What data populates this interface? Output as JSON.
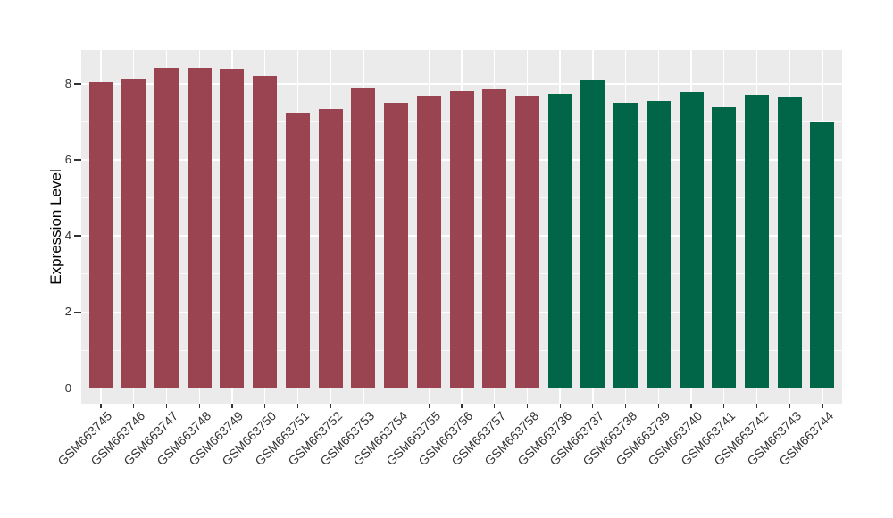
{
  "figure": {
    "background_color": "#FFFFFF"
  },
  "chart_data": {
    "type": "bar",
    "title": "",
    "xlabel": "",
    "ylabel": "Expression Level",
    "legend_position": "none",
    "grid": true,
    "panel_background": "#EBEBEB",
    "gridline_color": "#FFFFFF",
    "axis_text_color": "#333333",
    "ylim": [
      -0.41,
      8.89
    ],
    "yticks_major": [
      0,
      2,
      4,
      6,
      8
    ],
    "yticks_minor": [
      1,
      3,
      5,
      7
    ],
    "categories": [
      "GSM663745",
      "GSM663746",
      "GSM663747",
      "GSM663748",
      "GSM663749",
      "GSM663750",
      "GSM663751",
      "GSM663752",
      "GSM663753",
      "GSM663754",
      "GSM663755",
      "GSM663756",
      "GSM663757",
      "GSM663758",
      "GSM663736",
      "GSM663737",
      "GSM663738",
      "GSM663739",
      "GSM663740",
      "GSM663741",
      "GSM663742",
      "GSM663743",
      "GSM663744"
    ],
    "values": [
      8.05,
      8.15,
      8.43,
      8.43,
      8.39,
      8.22,
      7.24,
      7.35,
      7.88,
      7.51,
      7.67,
      7.8,
      7.86,
      7.66,
      7.75,
      8.08,
      7.51,
      7.54,
      7.78,
      7.39,
      7.72,
      7.64,
      6.98
    ],
    "groups": [
      "group1",
      "group1",
      "group1",
      "group1",
      "group1",
      "group1",
      "group1",
      "group1",
      "group1",
      "group1",
      "group1",
      "group1",
      "group1",
      "group1",
      "group2",
      "group2",
      "group2",
      "group2",
      "group2",
      "group2",
      "group2",
      "group2",
      "group2"
    ],
    "group_colors": {
      "group1": "#9B4451",
      "group2": "#006647"
    }
  }
}
